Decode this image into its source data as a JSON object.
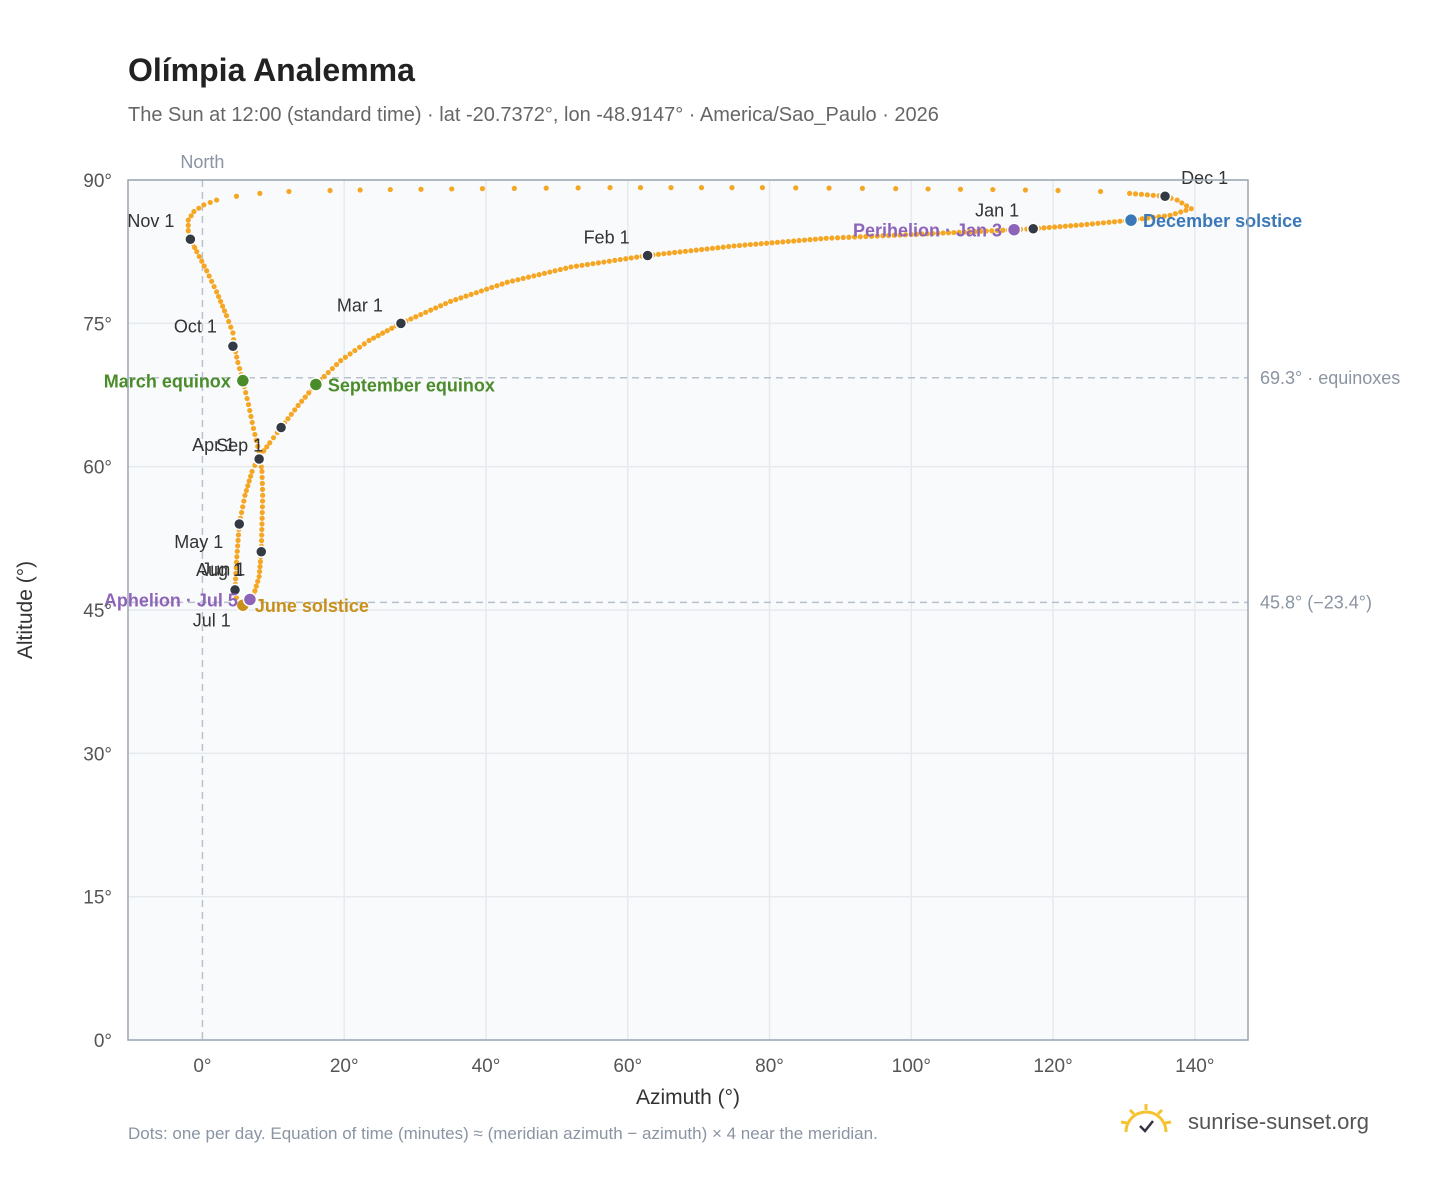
{
  "header": {
    "title": "Olímpia Analemma",
    "subtitle": "The Sun at 12:00 (standard time) · lat -20.7372°, lon -48.9147° · America/Sao_Paulo · 2026"
  },
  "footer": {
    "note": "Dots: one per day. Equation of time (minutes) ≈ (meridian azimuth − azimuth) × 4 near the meridian.",
    "brand": "sunrise-sunset.org"
  },
  "colors": {
    "path": "#f5a623",
    "month_marker": "#333a44",
    "equinox": "#4a8c2a",
    "june_solstice": "#c8901a",
    "december_solstice": "#3a78b8",
    "aphelion_perihelion": "#8e64b8",
    "grid": "#e6eaef",
    "plot_bg": "#f8fafc",
    "frame": "#9aa4b2"
  },
  "chart_data": {
    "type": "scatter",
    "title": "Olímpia Analemma",
    "xlabel": "Azimuth (°)",
    "ylabel": "Altitude (°)",
    "xlim": [
      -10.5,
      147.5
    ],
    "ylim": [
      0,
      90
    ],
    "x_ticks": [
      0,
      20,
      40,
      60,
      80,
      100,
      120,
      140
    ],
    "x_tick_labels": [
      "0°",
      "20°",
      "40°",
      "60°",
      "80°",
      "100°",
      "120°",
      "140°"
    ],
    "y_ticks": [
      0,
      15,
      30,
      45,
      60,
      75,
      90
    ],
    "y_tick_labels": [
      "0°",
      "15°",
      "30°",
      "45°",
      "60°",
      "75°",
      "90°"
    ],
    "grid": true,
    "north_line": {
      "x": 0,
      "label": "North"
    },
    "reference_lines": [
      {
        "y": 69.3,
        "label": "69.3° · equinoxes"
      },
      {
        "y": 45.8,
        "label": "45.8° (−23.4°)"
      }
    ],
    "path_points": [
      [
        117.2,
        84.9
      ],
      [
        124.0,
        85.3
      ],
      [
        131.0,
        85.8
      ],
      [
        136.5,
        86.3
      ],
      [
        139.5,
        87.0
      ],
      [
        137.5,
        87.9
      ],
      [
        135.8,
        88.3
      ],
      [
        130.8,
        88.6
      ],
      [
        126.7,
        88.8
      ],
      [
        120.7,
        88.9
      ],
      [
        111.5,
        89.0
      ],
      [
        97.8,
        89.1
      ],
      [
        79.0,
        89.2
      ],
      [
        57.5,
        89.2
      ],
      [
        39.5,
        89.1
      ],
      [
        26.5,
        89.0
      ],
      [
        18.0,
        88.9
      ],
      [
        12.2,
        88.8
      ],
      [
        8.1,
        88.6
      ],
      [
        4.8,
        88.3
      ],
      [
        2.0,
        87.9
      ],
      [
        0.2,
        87.4
      ],
      [
        -1.2,
        86.7
      ],
      [
        -2.0,
        85.8
      ],
      [
        -2.0,
        84.7
      ],
      [
        -1.7,
        83.8
      ],
      [
        -0.8,
        82.5
      ],
      [
        0.6,
        80.5
      ],
      [
        2.0,
        78.3
      ],
      [
        3.4,
        75.8
      ],
      [
        4.3,
        74.0
      ],
      [
        4.5,
        72.6
      ],
      [
        5.0,
        70.9
      ],
      [
        5.7,
        69.0
      ],
      [
        6.5,
        66.5
      ],
      [
        7.2,
        64.0
      ],
      [
        8.0,
        61.5
      ],
      [
        8.4,
        59.5
      ],
      [
        8.5,
        57.0
      ],
      [
        8.4,
        54.0
      ],
      [
        8.3,
        51.1
      ],
      [
        8.0,
        48.5
      ],
      [
        7.2,
        46.5
      ],
      [
        6.7,
        45.8
      ],
      [
        6.0,
        45.5
      ],
      [
        5.3,
        45.6
      ],
      [
        4.8,
        46.3
      ],
      [
        4.6,
        47.1
      ],
      [
        4.8,
        50.0
      ],
      [
        5.2,
        54.0
      ],
      [
        6.0,
        57.0
      ],
      [
        7.0,
        59.5
      ],
      [
        7.8,
        60.8
      ],
      [
        9.5,
        62.5
      ],
      [
        11.1,
        64.1
      ],
      [
        13.5,
        66.4
      ],
      [
        16.0,
        68.6
      ],
      [
        19.5,
        71.1
      ],
      [
        23.5,
        73.2
      ],
      [
        28.0,
        75.0
      ],
      [
        35.0,
        77.3
      ],
      [
        43.0,
        79.3
      ],
      [
        52.0,
        80.9
      ],
      [
        62.8,
        82.1
      ],
      [
        75.0,
        83.1
      ],
      [
        88.0,
        83.9
      ],
      [
        100.0,
        84.3
      ],
      [
        109.0,
        84.6
      ],
      [
        114.5,
        84.8
      ],
      [
        117.2,
        84.9
      ]
    ],
    "sparse_segment_days": {
      "from_azimuth": 130.8,
      "to_azimuth": 2.0
    },
    "month_markers": [
      {
        "label": "Jan 1",
        "azimuth": 117.2,
        "altitude": 84.9
      },
      {
        "label": "Feb 1",
        "azimuth": 62.8,
        "altitude": 82.1
      },
      {
        "label": "Mar 1",
        "azimuth": 28.0,
        "altitude": 75.0
      },
      {
        "label": "Apr 1",
        "azimuth": 8.0,
        "altitude": 60.8
      },
      {
        "label": "May 1",
        "azimuth": 5.2,
        "altitude": 54.0
      },
      {
        "label": "Jun 1",
        "azimuth": 8.3,
        "altitude": 51.1
      },
      {
        "label": "Jul 1",
        "azimuth": 5.7,
        "altitude": 45.6
      },
      {
        "label": "Aug 1",
        "azimuth": 4.6,
        "altitude": 47.1
      },
      {
        "label": "Sep 1",
        "azimuth": 11.1,
        "altitude": 64.1
      },
      {
        "label": "Oct 1",
        "azimuth": 4.3,
        "altitude": 72.6
      },
      {
        "label": "Nov 1",
        "azimuth": -1.7,
        "altitude": 83.8
      },
      {
        "label": "Dec 1",
        "azimuth": 135.8,
        "altitude": 88.3
      }
    ],
    "events": [
      {
        "label": "March equinox",
        "azimuth": 5.7,
        "altitude": 69.0,
        "color_key": "equinox",
        "side": "left"
      },
      {
        "label": "September equinox",
        "azimuth": 16.0,
        "altitude": 68.6,
        "color_key": "equinox",
        "side": "right"
      },
      {
        "label": "June solstice",
        "azimuth": 5.7,
        "altitude": 45.5,
        "color_key": "june_solstice",
        "side": "right"
      },
      {
        "label": "December solstice",
        "azimuth": 131.0,
        "altitude": 85.8,
        "color_key": "december_solstice",
        "side": "right"
      },
      {
        "label": "Aphelion · Jul 5",
        "azimuth": 6.7,
        "altitude": 46.1,
        "color_key": "aphelion_perihelion",
        "side": "left"
      },
      {
        "label": "Perihelion · Jan 3",
        "azimuth": 114.5,
        "altitude": 84.8,
        "color_key": "aphelion_perihelion",
        "side": "left"
      }
    ]
  }
}
